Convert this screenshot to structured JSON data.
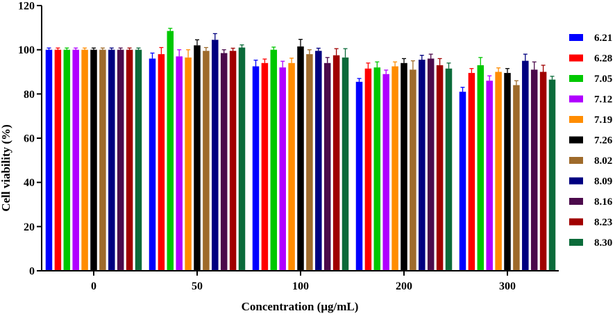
{
  "chart_data": {
    "type": "bar",
    "title": "",
    "xlabel": "Concentration (μg/mL)",
    "ylabel": "Cell viability (%)",
    "ylim": [
      0,
      120
    ],
    "yticks": [
      "0",
      "20",
      "40",
      "60",
      "80",
      "100",
      "120"
    ],
    "categories": [
      "0",
      "50",
      "100",
      "200",
      "300"
    ],
    "legend_position": "right",
    "grid": false,
    "series": [
      {
        "name": "6.21",
        "color": "#0000FF",
        "values": [
          100,
          96,
          92.5,
          85.5,
          81
        ],
        "errors": [
          0.8,
          2.5,
          2.8,
          1.5,
          2
        ]
      },
      {
        "name": "6.28",
        "color": "#FF0000",
        "values": [
          100,
          98,
          94,
          91.5,
          89.5
        ],
        "errors": [
          0.8,
          3,
          1.8,
          2.5,
          2
        ]
      },
      {
        "name": "7.05",
        "color": "#00C800",
        "values": [
          100,
          108.5,
          100,
          92,
          93
        ],
        "errors": [
          0.8,
          1.2,
          1.2,
          2.5,
          3.5
        ]
      },
      {
        "name": "7.12",
        "color": "#B000FF",
        "values": [
          100,
          97,
          92,
          89,
          86
        ],
        "errors": [
          0.8,
          3,
          2.8,
          1.8,
          2.2
        ]
      },
      {
        "name": "7.19",
        "color": "#FF8C00",
        "values": [
          100,
          96.5,
          94,
          92.5,
          90
        ],
        "errors": [
          0.8,
          3.5,
          2.2,
          2,
          1.8
        ]
      },
      {
        "name": "7.26",
        "color": "#000000",
        "values": [
          100,
          102,
          101.5,
          94,
          89.5
        ],
        "errors": [
          0.8,
          2.5,
          3.2,
          2,
          2
        ]
      },
      {
        "name": "8.02",
        "color": "#9E6A2B",
        "values": [
          100,
          99.5,
          98,
          91,
          84
        ],
        "errors": [
          0.8,
          1.5,
          2,
          4,
          2
        ]
      },
      {
        "name": "8.09",
        "color": "#000080",
        "values": [
          100,
          104.5,
          99.5,
          95.5,
          95
        ],
        "errors": [
          0.8,
          2.8,
          1.2,
          2,
          3
        ]
      },
      {
        "name": "8.16",
        "color": "#4B0A4B",
        "values": [
          100,
          98.5,
          94,
          96,
          91
        ],
        "errors": [
          0.8,
          1.5,
          2.5,
          2,
          3.5
        ]
      },
      {
        "name": "8.23",
        "color": "#A00000",
        "values": [
          100,
          99.5,
          97.5,
          93,
          90
        ],
        "errors": [
          0.8,
          1.2,
          3,
          3,
          3
        ]
      },
      {
        "name": "8.30",
        "color": "#0B6B3A",
        "values": [
          100,
          101,
          96.5,
          91.5,
          86.5
        ],
        "errors": [
          0.8,
          1.2,
          4,
          2.5,
          1.5
        ]
      }
    ]
  }
}
